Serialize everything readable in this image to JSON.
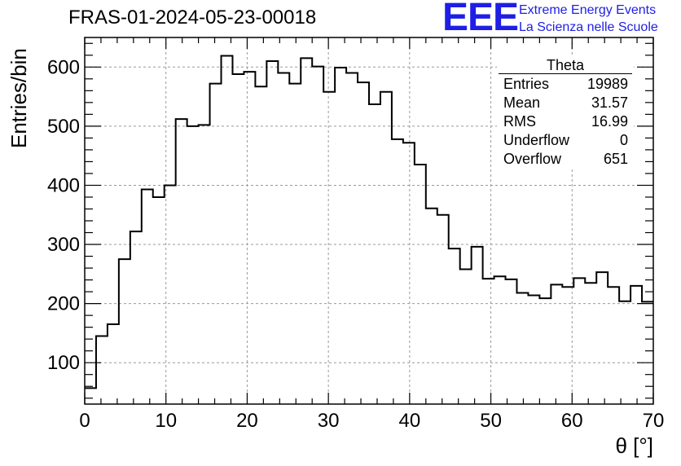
{
  "header": {
    "title": "FRAS-01-2024-05-23-00018",
    "logo_text": "EEE",
    "logo_line1": "Extreme Energy Events",
    "logo_line2": "La Scienza nelle Scuole"
  },
  "stats_box": {
    "title": "Theta",
    "rows": [
      {
        "label": "Entries",
        "value": "19989"
      },
      {
        "label": "Mean",
        "value": "31.57"
      },
      {
        "label": "RMS",
        "value": "16.99"
      },
      {
        "label": "Underflow",
        "value": "0"
      },
      {
        "label": "Overflow",
        "value": "651"
      }
    ]
  },
  "chart_data": {
    "type": "bar",
    "style": "step-histogram",
    "title": "FRAS-01-2024-05-23-00018",
    "xlabel": "θ [°]",
    "ylabel": "Entries/bin",
    "xlim": [
      0,
      70
    ],
    "ylim": [
      30,
      650
    ],
    "bin_width": 1.4,
    "xticks": [
      0,
      10,
      20,
      30,
      40,
      50,
      60,
      70
    ],
    "yticks": [
      100,
      200,
      300,
      400,
      500,
      600
    ],
    "grid": true,
    "line_color": "#000000",
    "values": [
      57,
      145,
      165,
      275,
      322,
      393,
      380,
      400,
      512,
      500,
      502,
      572,
      619,
      588,
      592,
      567,
      610,
      590,
      572,
      615,
      601,
      558,
      599,
      590,
      574,
      537,
      558,
      478,
      472,
      435,
      361,
      350,
      293,
      258,
      296,
      242,
      246,
      241,
      218,
      214,
      209,
      232,
      228,
      243,
      235,
      253,
      228,
      204,
      230,
      203
    ]
  }
}
